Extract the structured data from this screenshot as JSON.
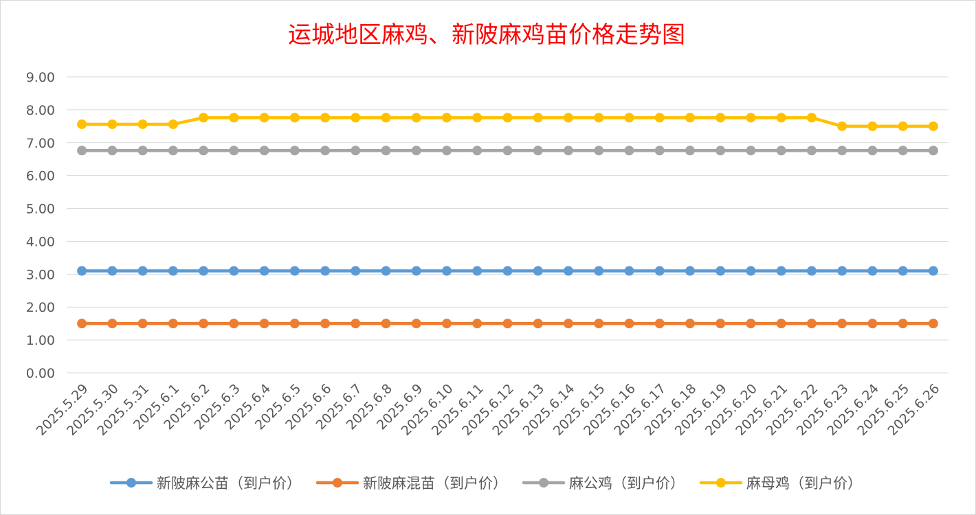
{
  "chart_data": {
    "type": "line",
    "title": "运城地区麻鸡、新陂麻鸡苗价格走势图",
    "xlabel": "",
    "ylabel": "",
    "ylim": [
      0,
      9
    ],
    "y_ticks": [
      "0.00",
      "1.00",
      "2.00",
      "3.00",
      "4.00",
      "5.00",
      "6.00",
      "7.00",
      "8.00",
      "9.00"
    ],
    "grid": true,
    "legend_position": "bottom",
    "categories": [
      "2025.5.29",
      "2025.5.30",
      "2025.5.31",
      "2025.6.1",
      "2025.6.2",
      "2025.6.3",
      "2025.6.4",
      "2025.6.5",
      "2025.6.6",
      "2025.6.7",
      "2025.6.8",
      "2025.6.9",
      "2025.6.10",
      "2025.6.11",
      "2025.6.12",
      "2025.6.13",
      "2025.6.14",
      "2025.6.15",
      "2025.6.16",
      "2025.6.17",
      "2025.6.18",
      "2025.6.19",
      "2025.6.20",
      "2025.6.21",
      "2025.6.22",
      "2025.6.23",
      "2025.6.24",
      "2025.6.25",
      "2025.6.26"
    ],
    "series": [
      {
        "name": "新陂麻公苗（到户价）",
        "color": "#5b9bd5",
        "values": [
          3.1,
          3.1,
          3.1,
          3.1,
          3.1,
          3.1,
          3.1,
          3.1,
          3.1,
          3.1,
          3.1,
          3.1,
          3.1,
          3.1,
          3.1,
          3.1,
          3.1,
          3.1,
          3.1,
          3.1,
          3.1,
          3.1,
          3.1,
          3.1,
          3.1,
          3.1,
          3.1,
          3.1,
          3.1
        ]
      },
      {
        "name": "新陂麻混苗（到户价）",
        "color": "#ed7d31",
        "values": [
          1.5,
          1.5,
          1.5,
          1.5,
          1.5,
          1.5,
          1.5,
          1.5,
          1.5,
          1.5,
          1.5,
          1.5,
          1.5,
          1.5,
          1.5,
          1.5,
          1.5,
          1.5,
          1.5,
          1.5,
          1.5,
          1.5,
          1.5,
          1.5,
          1.5,
          1.5,
          1.5,
          1.5,
          1.5
        ]
      },
      {
        "name": "麻公鸡（到户价）",
        "color": "#a5a5a5",
        "values": [
          6.76,
          6.76,
          6.76,
          6.76,
          6.76,
          6.76,
          6.76,
          6.76,
          6.76,
          6.76,
          6.76,
          6.76,
          6.76,
          6.76,
          6.76,
          6.76,
          6.76,
          6.76,
          6.76,
          6.76,
          6.76,
          6.76,
          6.76,
          6.76,
          6.76,
          6.76,
          6.76,
          6.76,
          6.76
        ]
      },
      {
        "name": "麻母鸡（到户价）",
        "color": "#ffc000",
        "values": [
          7.56,
          7.56,
          7.56,
          7.56,
          7.76,
          7.76,
          7.76,
          7.76,
          7.76,
          7.76,
          7.76,
          7.76,
          7.76,
          7.76,
          7.76,
          7.76,
          7.76,
          7.76,
          7.76,
          7.76,
          7.76,
          7.76,
          7.76,
          7.76,
          7.76,
          7.5,
          7.5,
          7.5,
          7.5
        ]
      }
    ]
  }
}
